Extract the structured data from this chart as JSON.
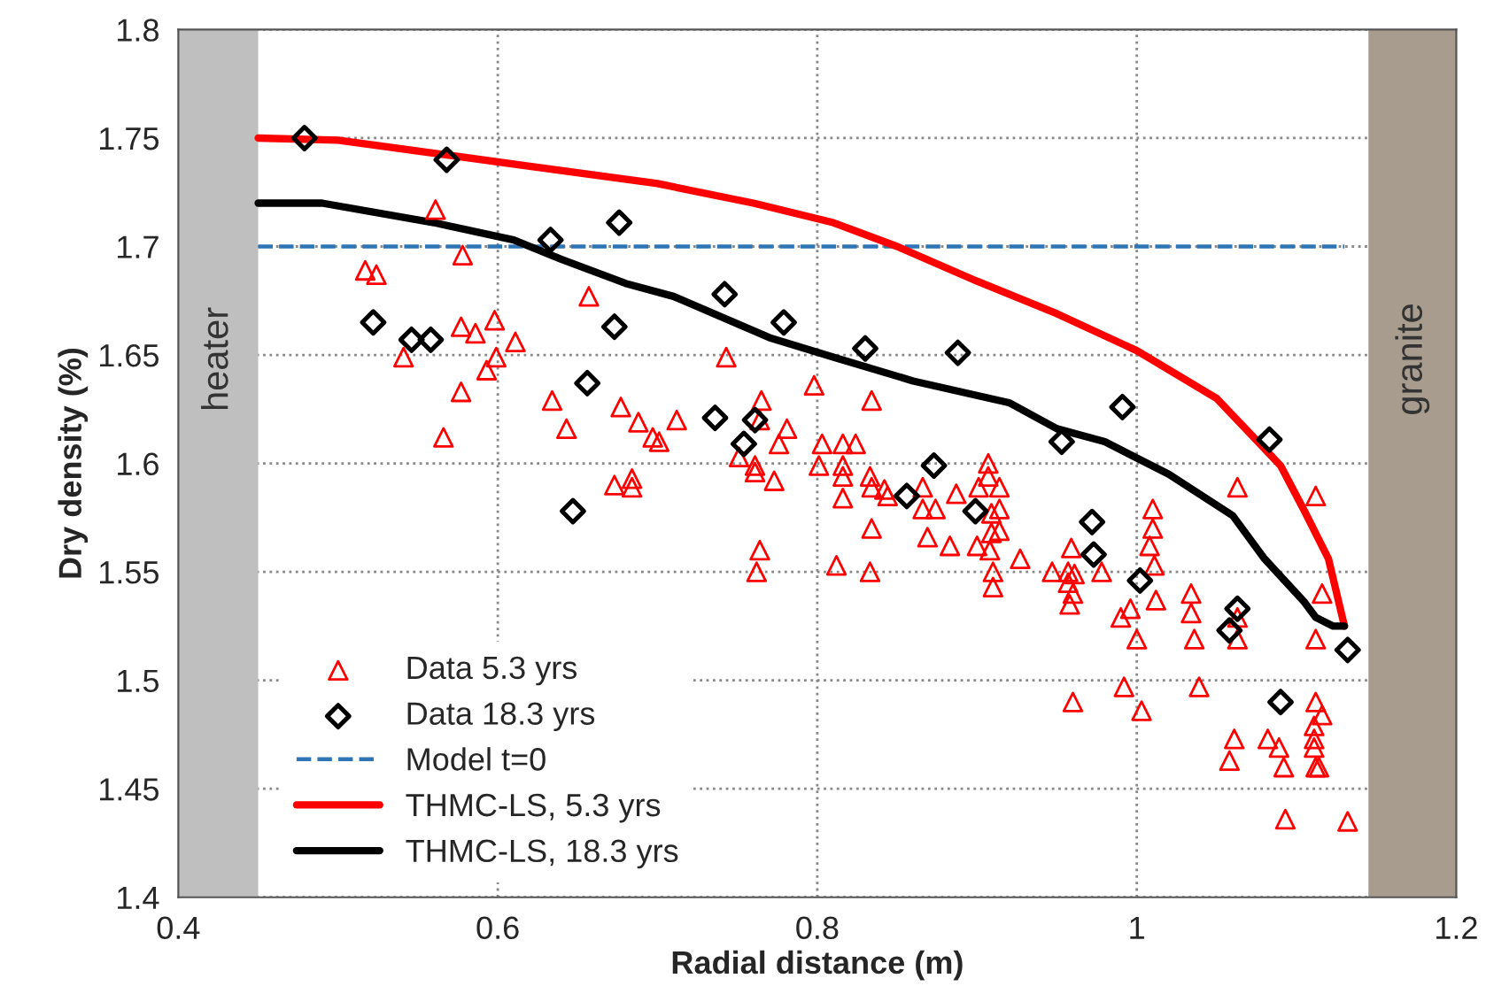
{
  "chart_data": {
    "type": "scatter",
    "xlabel": "Radial distance (m)",
    "ylabel": "Dry density (%)",
    "xlim": [
      0.4,
      1.2
    ],
    "xticks": [
      0.4,
      0.6,
      0.8,
      1,
      1.2
    ],
    "ylim": [
      1.4,
      1.8
    ],
    "yticks": [
      1.4,
      1.45,
      1.5,
      1.55,
      1.6,
      1.65,
      1.7,
      1.75,
      1.8
    ],
    "grid": true,
    "legend": "bottom left",
    "bands": [
      {
        "axis": "x",
        "from": 0.4,
        "to": 0.45,
        "label": "heater",
        "color": "#bfbfbf"
      },
      {
        "axis": "x",
        "from": 1.145,
        "to": 1.2,
        "label": "granite",
        "color": "#a89c8e"
      }
    ],
    "series": [
      {
        "name": "Data 5.3 yrs",
        "marker": "triangle",
        "color": "#ff0000",
        "x": [
          0.561,
          0.578,
          0.517,
          0.524,
          0.657,
          0.577,
          0.586,
          0.598,
          0.611,
          0.599,
          0.541,
          0.593,
          0.577,
          0.566,
          0.634,
          0.643,
          0.677,
          0.688,
          0.697,
          0.701,
          0.673,
          0.684,
          0.684,
          0.743,
          0.798,
          0.765,
          0.834,
          0.712,
          0.764,
          0.781,
          0.776,
          0.803,
          0.816,
          0.824,
          0.751,
          0.761,
          0.761,
          0.773,
          0.801,
          0.816,
          0.816,
          0.816,
          0.833,
          0.834,
          0.842,
          0.844,
          0.866,
          0.866,
          0.874,
          0.887,
          0.907,
          0.907,
          0.901,
          0.914,
          0.914,
          0.909,
          0.834,
          0.869,
          0.883,
          0.9,
          0.914,
          0.909,
          0.908,
          0.764,
          0.762,
          0.812,
          0.833,
          0.91,
          0.91,
          0.927,
          0.947,
          1.063,
          1.112,
          1.01,
          1.01,
          0.959,
          1.008,
          1.011,
          0.957,
          0.961,
          0.978,
          0.957,
          0.96,
          0.958,
          1.012,
          0.996,
          0.99,
          1.034,
          1.034,
          1.0,
          1.036,
          1.063,
          1.063,
          1.116,
          1.112,
          0.992,
          1.039,
          0.96,
          1.003,
          1.112,
          1.116,
          1.111,
          1.061,
          1.082,
          1.089,
          1.111,
          1.111,
          1.058,
          1.092,
          1.112,
          1.114,
          1.093,
          1.132
        ],
        "values": [
          1.717,
          1.696,
          1.689,
          1.687,
          1.677,
          1.663,
          1.66,
          1.666,
          1.656,
          1.649,
          1.649,
          1.643,
          1.633,
          1.612,
          1.629,
          1.616,
          1.626,
          1.619,
          1.612,
          1.61,
          1.59,
          1.593,
          1.589,
          1.649,
          1.636,
          1.629,
          1.629,
          1.62,
          1.62,
          1.616,
          1.609,
          1.609,
          1.609,
          1.609,
          1.603,
          1.599,
          1.596,
          1.592,
          1.599,
          1.599,
          1.594,
          1.584,
          1.594,
          1.589,
          1.588,
          1.585,
          1.589,
          1.579,
          1.579,
          1.586,
          1.6,
          1.594,
          1.589,
          1.589,
          1.579,
          1.577,
          1.57,
          1.566,
          1.562,
          1.562,
          1.569,
          1.568,
          1.56,
          1.56,
          1.55,
          1.553,
          1.55,
          1.55,
          1.543,
          1.556,
          1.55,
          1.589,
          1.585,
          1.579,
          1.57,
          1.561,
          1.562,
          1.553,
          1.55,
          1.549,
          1.55,
          1.545,
          1.54,
          1.535,
          1.537,
          1.533,
          1.529,
          1.54,
          1.531,
          1.519,
          1.519,
          1.529,
          1.519,
          1.54,
          1.519,
          1.497,
          1.497,
          1.49,
          1.486,
          1.49,
          1.484,
          1.479,
          1.473,
          1.473,
          1.469,
          1.473,
          1.469,
          1.463,
          1.46,
          1.46,
          1.46,
          1.436,
          1.435
        ]
      },
      {
        "name": "Data 18.3 yrs",
        "marker": "diamond",
        "color": "#000000",
        "x": [
          0.479,
          0.568,
          0.522,
          0.546,
          0.558,
          0.633,
          0.676,
          0.673,
          0.656,
          0.647,
          0.742,
          0.779,
          0.736,
          0.761,
          0.754,
          0.83,
          0.888,
          0.873,
          0.856,
          0.899,
          0.991,
          0.953,
          1.083,
          0.972,
          0.973,
          1.002,
          1.063,
          1.058,
          1.132,
          1.09
        ],
        "values": [
          1.75,
          1.74,
          1.665,
          1.657,
          1.657,
          1.703,
          1.711,
          1.663,
          1.637,
          1.578,
          1.678,
          1.665,
          1.621,
          1.62,
          1.609,
          1.653,
          1.651,
          1.599,
          1.585,
          1.578,
          1.626,
          1.61,
          1.611,
          1.573,
          1.558,
          1.546,
          1.533,
          1.523,
          1.514,
          1.49
        ]
      },
      {
        "name": "Model t=0",
        "type": "line",
        "line_style": "dashed",
        "color": "#2e75b6",
        "x": [
          0.45,
          1.13
        ],
        "values": [
          1.7,
          1.7
        ]
      },
      {
        "name": "THMC-LS, 5.3 yrs",
        "type": "line",
        "line_style": "solid",
        "color": "#ff0000",
        "x": [
          0.45,
          0.5,
          0.56,
          0.62,
          0.7,
          0.76,
          0.81,
          0.85,
          0.9,
          0.95,
          1.0,
          1.05,
          1.09,
          1.105,
          1.12,
          1.13
        ],
        "values": [
          1.75,
          1.749,
          1.743,
          1.737,
          1.729,
          1.72,
          1.711,
          1.7,
          1.684,
          1.669,
          1.652,
          1.63,
          1.599,
          1.578,
          1.556,
          1.525
        ]
      },
      {
        "name": "THMC-LS, 18.3 yrs",
        "type": "line",
        "line_style": "solid",
        "color": "#000000",
        "x": [
          0.45,
          0.49,
          0.56,
          0.61,
          0.64,
          0.68,
          0.71,
          0.77,
          0.81,
          0.86,
          0.92,
          0.95,
          0.98,
          1.02,
          1.06,
          1.08,
          1.105,
          1.112,
          1.123,
          1.13
        ],
        "values": [
          1.72,
          1.72,
          1.711,
          1.703,
          1.694,
          1.683,
          1.677,
          1.658,
          1.649,
          1.638,
          1.628,
          1.616,
          1.61,
          1.595,
          1.576,
          1.556,
          1.536,
          1.529,
          1.525,
          1.525
        ]
      }
    ]
  }
}
